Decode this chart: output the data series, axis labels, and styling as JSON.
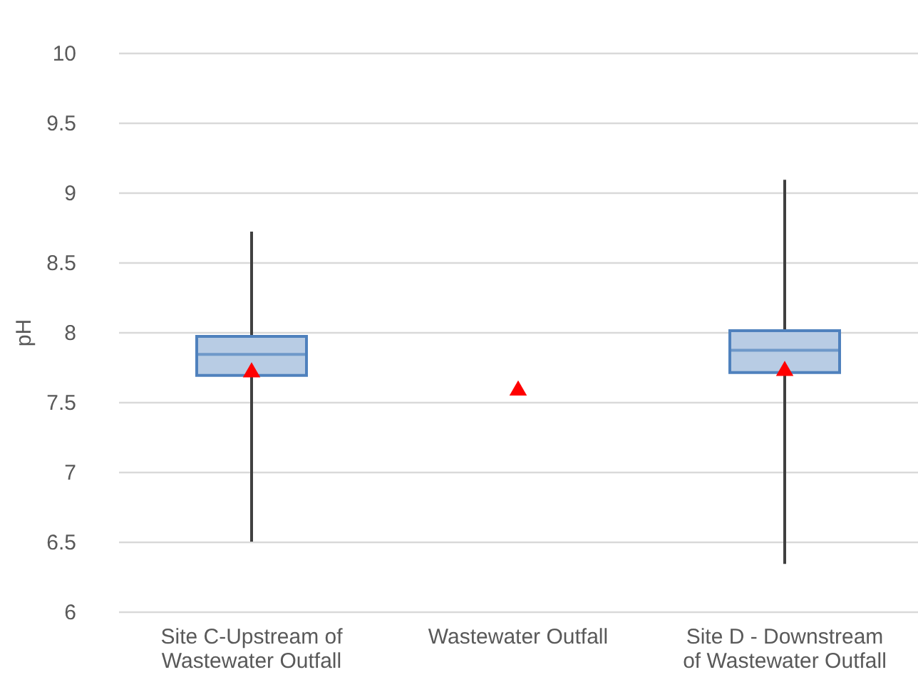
{
  "chart_data": {
    "type": "box",
    "ylabel": "pH",
    "categories": [
      "Site C-Upstream of Wastewater Outfall",
      "Wastewater Outfall",
      "Site D - Downstream of Wastewater Outfall"
    ],
    "boxes": [
      {
        "low": 6.5,
        "q1": 7.69,
        "median": 7.84,
        "q3": 7.97,
        "high": 8.72
      },
      null,
      {
        "low": 6.34,
        "q1": 7.71,
        "median": 7.87,
        "q3": 8.01,
        "high": 9.09
      }
    ],
    "color": "#b8cce4",
    "series": [
      {
        "type": "scatter",
        "x": [
          "Site C-Upstream of Wastewater Outfall",
          "Wastewater Outfall",
          "Site D - Downstream of Wastewater Outfall"
        ],
        "values": [
          7.73,
          7.6,
          7.74
        ],
        "color": "#ff0000",
        "marker": "triangle"
      }
    ],
    "ylim": [
      6,
      10
    ],
    "yticks": [
      6,
      6.5,
      7,
      7.5,
      8,
      8.5,
      9,
      9.5,
      10
    ],
    "grid": "y"
  }
}
